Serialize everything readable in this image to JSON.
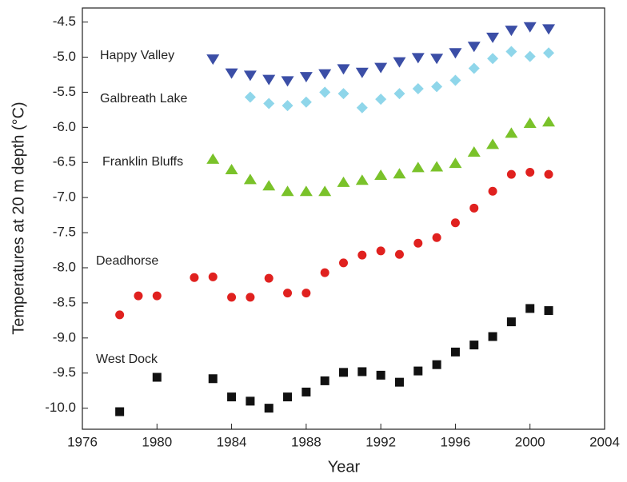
{
  "chart_data": {
    "type": "scatter",
    "x_label": "Year",
    "y_label": "Temperatures at 20 m depth (°C)",
    "xlim": [
      1976,
      2004
    ],
    "xticks": [
      1976,
      1980,
      1984,
      1988,
      1992,
      1996,
      2000,
      2004
    ],
    "ylim": [
      -10.3,
      -4.3
    ],
    "yticks": [
      -4.5,
      {
        "value": -5,
        "label": "-5.0"
      },
      -5.5,
      {
        "value": -6,
        "label": "-6.0"
      },
      -6.5,
      {
        "value": -7,
        "label": "-7.0"
      },
      -7.5,
      {
        "value": -8,
        "label": "-8.0"
      },
      -8.5,
      {
        "value": -9,
        "label": "-9.0"
      },
      -9.5,
      {
        "value": -10,
        "label": "-10.0"
      }
    ],
    "series": [
      {
        "name": "Happy Valley",
        "color": "#3b4ea6",
        "marker": "triangle-down",
        "x": [
          1983,
          1984,
          1985,
          1986,
          1987,
          1988,
          1989,
          1990,
          1991,
          1992,
          1993,
          1994,
          1995,
          1996,
          1997,
          1998,
          1999,
          2000,
          2001
        ],
        "values": [
          -5.03,
          -5.23,
          -5.26,
          -5.32,
          -5.34,
          -5.28,
          -5.24,
          -5.17,
          -5.22,
          -5.15,
          -5.07,
          -5.01,
          -5.02,
          -4.94,
          -4.85,
          -4.72,
          -4.62,
          -4.57,
          -4.6
        ]
      },
      {
        "name": "Galbreath Lake",
        "color": "#8fd6ea",
        "marker": "diamond",
        "x": [
          1985,
          1986,
          1987,
          1988,
          1989,
          1990,
          1991,
          1992,
          1993,
          1994,
          1995,
          1996,
          1997,
          1998,
          1999,
          2000,
          2001
        ],
        "values": [
          -5.57,
          -5.66,
          -5.69,
          -5.64,
          -5.5,
          -5.52,
          -5.72,
          -5.6,
          -5.52,
          -5.45,
          -5.42,
          -5.33,
          -5.16,
          -5.02,
          -4.92,
          -4.99,
          -4.94
        ]
      },
      {
        "name": "Franklin Bluffs",
        "color": "#7ac22a",
        "marker": "triangle-up",
        "x": [
          1983,
          1984,
          1985,
          1986,
          1987,
          1988,
          1989,
          1990,
          1991,
          1992,
          1993,
          1994,
          1995,
          1996,
          1997,
          1998,
          1999,
          2000,
          2001
        ],
        "values": [
          -6.45,
          -6.6,
          -6.74,
          -6.83,
          -6.91,
          -6.91,
          -6.91,
          -6.78,
          -6.75,
          -6.68,
          -6.66,
          -6.57,
          -6.56,
          -6.51,
          -6.35,
          -6.24,
          -6.08,
          -5.94,
          -5.92
        ]
      },
      {
        "name": "Deadhorse",
        "color": "#e0211f",
        "marker": "circle",
        "x": [
          1978,
          1979,
          1980,
          1982,
          1983,
          1984,
          1985,
          1986,
          1987,
          1988,
          1989,
          1990,
          1991,
          1992,
          1993,
          1994,
          1995,
          1996,
          1997,
          1998,
          1999,
          2000,
          2001
        ],
        "values": [
          -8.67,
          -8.4,
          -8.4,
          -8.14,
          -8.13,
          -8.42,
          -8.42,
          -8.15,
          -8.36,
          -8.36,
          -8.07,
          -7.93,
          -7.82,
          -7.76,
          -7.81,
          -7.65,
          -7.57,
          -7.36,
          -7.15,
          -6.91,
          -6.67,
          -6.64,
          -6.67
        ]
      },
      {
        "name": "West Dock",
        "color": "#111111",
        "marker": "square",
        "x": [
          1978,
          1980,
          1983,
          1984,
          1985,
          1986,
          1987,
          1988,
          1989,
          1990,
          1991,
          1992,
          1993,
          1994,
          1995,
          1996,
          1997,
          1998,
          1999,
          2000,
          2001
        ],
        "values": [
          -10.05,
          -9.56,
          -9.58,
          -9.84,
          -9.9,
          -10.0,
          -9.84,
          -9.77,
          -9.61,
          -9.49,
          -9.48,
          -9.53,
          -9.63,
          -9.47,
          -9.38,
          -9.2,
          -9.1,
          -8.98,
          -8.77,
          -8.58,
          -8.61
        ]
      }
    ]
  }
}
